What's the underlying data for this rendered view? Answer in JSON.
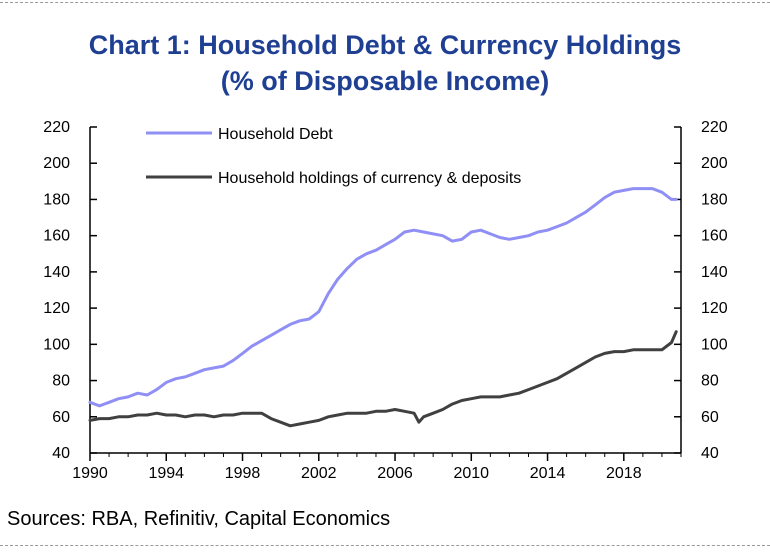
{
  "title": {
    "line1": "Chart 1: Household Debt & Currency Holdings",
    "line2": "(% of Disposable Income)"
  },
  "source": "Sources: RBA, Refinitiv, Capital Economics",
  "colors": {
    "title": "#1f3f93",
    "debt_series": "#8f8ff5",
    "currency_series": "#404040",
    "axis": "#000000"
  },
  "chart_data": {
    "type": "line",
    "title": "Chart 1: Household Debt & Currency Holdings (% of Disposable Income)",
    "xlabel": "",
    "ylabel": "",
    "xlim": [
      1990,
      2021
    ],
    "ylim": [
      40,
      220
    ],
    "y2lim": [
      40,
      220
    ],
    "x_ticks": [
      "1990",
      "1994",
      "1998",
      "2002",
      "2006",
      "2010",
      "2014",
      "2018"
    ],
    "y_ticks": [
      "40",
      "60",
      "80",
      "100",
      "120",
      "140",
      "160",
      "180",
      "200",
      "220"
    ],
    "y2_ticks": [
      "40",
      "60",
      "80",
      "100",
      "120",
      "140",
      "160",
      "180",
      "200",
      "220"
    ],
    "grid": false,
    "legend_position": "top-left",
    "series": [
      {
        "name": "Household Debt",
        "x": [
          1990.0,
          1990.5,
          1991.0,
          1991.5,
          1992.0,
          1992.5,
          1993.0,
          1993.5,
          1994.0,
          1994.5,
          1995.0,
          1995.5,
          1996.0,
          1996.5,
          1997.0,
          1997.5,
          1998.0,
          1998.5,
          1999.0,
          1999.5,
          2000.0,
          2000.5,
          2001.0,
          2001.5,
          2002.0,
          2002.5,
          2003.0,
          2003.5,
          2004.0,
          2004.5,
          2005.0,
          2005.5,
          2006.0,
          2006.5,
          2007.0,
          2007.5,
          2008.0,
          2008.5,
          2009.0,
          2009.5,
          2010.0,
          2010.5,
          2011.0,
          2011.5,
          2012.0,
          2012.5,
          2013.0,
          2013.5,
          2014.0,
          2014.5,
          2015.0,
          2015.5,
          2016.0,
          2016.5,
          2017.0,
          2017.5,
          2018.0,
          2018.5,
          2019.0,
          2019.5,
          2020.0,
          2020.5,
          2020.75
        ],
        "values": [
          68,
          66,
          68,
          70,
          71,
          73,
          72,
          75,
          79,
          81,
          82,
          84,
          86,
          87,
          88,
          91,
          95,
          99,
          102,
          105,
          108,
          111,
          113,
          114,
          118,
          128,
          136,
          142,
          147,
          150,
          152,
          155,
          158,
          162,
          163,
          162,
          161,
          160,
          157,
          158,
          162,
          163,
          161,
          159,
          158,
          159,
          160,
          162,
          163,
          165,
          167,
          170,
          173,
          177,
          181,
          184,
          185,
          186,
          186,
          186,
          184,
          180,
          180
        ]
      },
      {
        "name": "Household holdings of currency & deposits",
        "x": [
          1990.0,
          1990.5,
          1991.0,
          1991.5,
          1992.0,
          1992.5,
          1993.0,
          1993.5,
          1994.0,
          1994.5,
          1995.0,
          1995.5,
          1996.0,
          1996.5,
          1997.0,
          1997.5,
          1998.0,
          1998.5,
          1999.0,
          1999.5,
          2000.0,
          2000.5,
          2001.0,
          2001.5,
          2002.0,
          2002.5,
          2003.0,
          2003.5,
          2004.0,
          2004.5,
          2005.0,
          2005.5,
          2006.0,
          2006.5,
          2007.0,
          2007.25,
          2007.5,
          2008.0,
          2008.5,
          2009.0,
          2009.5,
          2010.0,
          2010.5,
          2011.0,
          2011.5,
          2012.0,
          2012.5,
          2013.0,
          2013.5,
          2014.0,
          2014.5,
          2015.0,
          2015.5,
          2016.0,
          2016.5,
          2017.0,
          2017.5,
          2018.0,
          2018.5,
          2019.0,
          2019.5,
          2020.0,
          2020.5,
          2020.75
        ],
        "values": [
          58,
          59,
          59,
          60,
          60,
          61,
          61,
          62,
          61,
          61,
          60,
          61,
          61,
          60,
          61,
          61,
          62,
          62,
          62,
          59,
          57,
          55,
          56,
          57,
          58,
          60,
          61,
          62,
          62,
          62,
          63,
          63,
          64,
          63,
          62,
          57,
          60,
          62,
          64,
          67,
          69,
          70,
          71,
          71,
          71,
          72,
          73,
          75,
          77,
          79,
          81,
          84,
          87,
          90,
          93,
          95,
          96,
          96,
          97,
          97,
          97,
          97,
          101,
          107
        ]
      }
    ]
  }
}
